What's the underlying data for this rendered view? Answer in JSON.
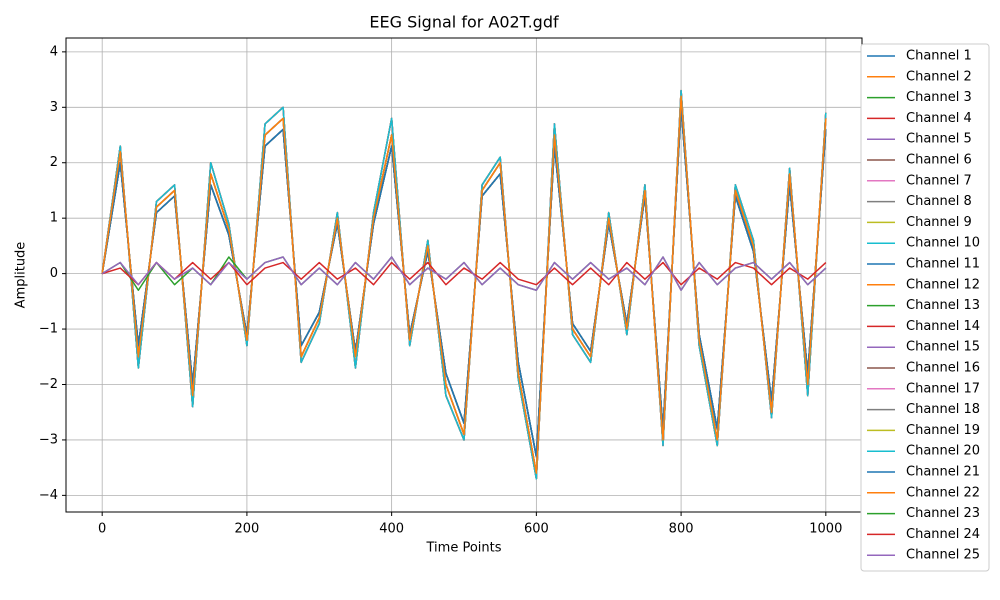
{
  "chart_data": {
    "type": "line",
    "title": "EEG Signal for A02T.gdf",
    "xlabel": "Time Points",
    "ylabel": "Amplitude",
    "x": [
      0,
      25,
      50,
      75,
      100,
      125,
      150,
      175,
      200,
      225,
      250,
      275,
      300,
      325,
      350,
      375,
      400,
      425,
      450,
      475,
      500,
      525,
      550,
      575,
      600,
      625,
      650,
      675,
      700,
      725,
      750,
      775,
      800,
      825,
      850,
      875,
      900,
      925,
      950,
      975,
      1000
    ],
    "xlim": [
      -50,
      1050
    ],
    "xticks": [
      0,
      200,
      400,
      600,
      800,
      1000
    ],
    "ylim": [
      -4.3,
      4.25
    ],
    "yticks": [
      {
        "value": -4,
        "label": "−4"
      },
      {
        "value": -3,
        "label": "−3"
      },
      {
        "value": -2,
        "label": "−2"
      },
      {
        "value": -1,
        "label": "−1"
      },
      0,
      1,
      2,
      3,
      4
    ],
    "grid": true,
    "legend": "outside-right",
    "series": [
      {
        "name": "Channel 1",
        "color": "#1f77b4",
        "values": [
          0,
          2.0,
          -1.3,
          1.1,
          1.4,
          -2.0,
          1.6,
          0.7,
          -1.1,
          2.3,
          2.6,
          -1.3,
          -0.7,
          0.9,
          -1.4,
          0.9,
          2.3,
          -1.1,
          0.4,
          -1.8,
          -2.7,
          1.4,
          1.8,
          -1.6,
          -3.3,
          2.3,
          -0.9,
          -1.4,
          0.9,
          -0.9,
          1.4,
          -2.8,
          3.0,
          -1.1,
          -2.8,
          1.4,
          0.4,
          -2.3,
          1.6,
          -1.8,
          2.6
        ]
      },
      {
        "name": "Channel 2",
        "color": "#ff7f0e",
        "values": [
          0,
          2.2,
          -1.5,
          1.2,
          1.5,
          -2.2,
          1.8,
          0.8,
          -1.2,
          2.5,
          2.8,
          -1.5,
          -0.8,
          1.0,
          -1.5,
          1.0,
          2.5,
          -1.2,
          0.5,
          -2.0,
          -2.9,
          1.5,
          2.0,
          -1.8,
          -3.6,
          2.5,
          -1.0,
          -1.5,
          1.0,
          -1.0,
          1.5,
          -3.0,
          3.2,
          -1.2,
          -3.0,
          1.5,
          0.5,
          -2.5,
          1.8,
          -2.0,
          2.8
        ]
      },
      {
        "name": "Channel 3",
        "color": "#2ca02c",
        "values": [
          0,
          2.3,
          -1.7,
          1.3,
          1.6,
          -2.4,
          2.0,
          0.9,
          -1.3,
          2.7,
          3.0,
          -1.6,
          -0.9,
          1.1,
          -1.7,
          1.1,
          2.8,
          -1.3,
          0.6,
          -2.2,
          -3.0,
          1.6,
          2.1,
          -1.9,
          -3.7,
          2.7,
          -1.1,
          -1.6,
          1.1,
          -1.1,
          1.6,
          -3.1,
          3.3,
          -1.3,
          -3.1,
          1.6,
          0.6,
          -2.6,
          1.9,
          -2.2,
          2.9
        ]
      },
      {
        "name": "Channel 4",
        "color": "#d62728",
        "values": [
          0,
          2.0,
          -1.3,
          1.1,
          1.4,
          -2.0,
          1.6,
          0.7,
          -1.1,
          2.3,
          2.6,
          -1.3,
          -0.7,
          0.9,
          -1.4,
          0.9,
          2.3,
          -1.1,
          0.4,
          -1.8,
          -2.7,
          1.4,
          1.8,
          -1.6,
          -3.3,
          2.3,
          -0.9,
          -1.4,
          0.9,
          -0.9,
          1.4,
          -2.8,
          3.0,
          -1.1,
          -2.8,
          1.4,
          0.4,
          -2.3,
          1.6,
          -1.8,
          2.6
        ]
      },
      {
        "name": "Channel 5",
        "color": "#9467bd",
        "values": [
          0,
          2.2,
          -1.5,
          1.2,
          1.5,
          -2.2,
          1.8,
          0.8,
          -1.2,
          2.5,
          2.8,
          -1.5,
          -0.8,
          1.0,
          -1.5,
          1.0,
          2.5,
          -1.2,
          0.5,
          -2.0,
          -2.9,
          1.5,
          2.0,
          -1.8,
          -3.6,
          2.5,
          -1.0,
          -1.5,
          1.0,
          -1.0,
          1.5,
          -3.0,
          3.2,
          -1.2,
          -3.0,
          1.5,
          0.5,
          -2.5,
          1.8,
          -2.0,
          2.8
        ]
      },
      {
        "name": "Channel 6",
        "color": "#8c564b",
        "values": [
          0,
          2.3,
          -1.7,
          1.3,
          1.6,
          -2.4,
          2.0,
          0.9,
          -1.3,
          2.7,
          3.0,
          -1.6,
          -0.9,
          1.1,
          -1.7,
          1.1,
          2.8,
          -1.3,
          0.6,
          -2.2,
          -3.0,
          1.6,
          2.1,
          -1.9,
          -3.7,
          2.7,
          -1.1,
          -1.6,
          1.1,
          -1.1,
          1.6,
          -3.1,
          3.3,
          -1.3,
          -3.1,
          1.6,
          0.6,
          -2.6,
          1.9,
          -2.2,
          2.9
        ]
      },
      {
        "name": "Channel 7",
        "color": "#e377c2",
        "values": [
          0,
          2.0,
          -1.3,
          1.1,
          1.4,
          -2.0,
          1.6,
          0.7,
          -1.1,
          2.3,
          2.6,
          -1.3,
          -0.7,
          0.9,
          -1.4,
          0.9,
          2.3,
          -1.1,
          0.4,
          -1.8,
          -2.7,
          1.4,
          1.8,
          -1.6,
          -3.3,
          2.3,
          -0.9,
          -1.4,
          0.9,
          -0.9,
          1.4,
          -2.8,
          3.0,
          -1.1,
          -2.8,
          1.4,
          0.4,
          -2.3,
          1.6,
          -1.8,
          2.6
        ]
      },
      {
        "name": "Channel 8",
        "color": "#7f7f7f",
        "values": [
          0,
          2.2,
          -1.5,
          1.2,
          1.5,
          -2.2,
          1.8,
          0.8,
          -1.2,
          2.5,
          2.8,
          -1.5,
          -0.8,
          1.0,
          -1.5,
          1.0,
          2.5,
          -1.2,
          0.5,
          -2.0,
          -2.9,
          1.5,
          2.0,
          -1.8,
          -3.6,
          2.5,
          -1.0,
          -1.5,
          1.0,
          -1.0,
          1.5,
          -3.0,
          3.2,
          -1.2,
          -3.0,
          1.5,
          0.5,
          -2.5,
          1.8,
          -2.0,
          2.8
        ]
      },
      {
        "name": "Channel 9",
        "color": "#bcbd22",
        "values": [
          0,
          2.3,
          -1.7,
          1.3,
          1.6,
          -2.4,
          2.0,
          0.9,
          -1.3,
          2.7,
          3.0,
          -1.6,
          -0.9,
          1.1,
          -1.7,
          1.1,
          2.8,
          -1.3,
          0.6,
          -2.2,
          -3.0,
          1.6,
          2.1,
          -1.9,
          -3.7,
          2.7,
          -1.1,
          -1.6,
          1.1,
          -1.1,
          1.6,
          -3.1,
          3.3,
          -1.3,
          -3.1,
          1.6,
          0.6,
          -2.6,
          1.9,
          -2.2,
          2.9
        ]
      },
      {
        "name": "Channel 10",
        "color": "#17becf",
        "values": [
          0,
          2.0,
          -1.3,
          1.1,
          1.4,
          -2.0,
          1.6,
          0.7,
          -1.1,
          2.3,
          2.6,
          -1.3,
          -0.7,
          0.9,
          -1.4,
          0.9,
          2.3,
          -1.1,
          0.4,
          -1.8,
          -2.7,
          1.4,
          1.8,
          -1.6,
          -3.3,
          2.3,
          -0.9,
          -1.4,
          0.9,
          -0.9,
          1.4,
          -2.8,
          3.0,
          -1.1,
          -2.8,
          1.4,
          0.4,
          -2.3,
          1.6,
          -1.8,
          2.6
        ]
      },
      {
        "name": "Channel 11",
        "color": "#1f77b4",
        "values": [
          0,
          2.2,
          -1.5,
          1.2,
          1.5,
          -2.2,
          1.8,
          0.8,
          -1.2,
          2.5,
          2.8,
          -1.5,
          -0.8,
          1.0,
          -1.5,
          1.0,
          2.5,
          -1.2,
          0.5,
          -2.0,
          -2.9,
          1.5,
          2.0,
          -1.8,
          -3.6,
          2.5,
          -1.0,
          -1.5,
          1.0,
          -1.0,
          1.5,
          -3.0,
          3.2,
          -1.2,
          -3.0,
          1.5,
          0.5,
          -2.5,
          1.8,
          -2.0,
          2.8
        ]
      },
      {
        "name": "Channel 12",
        "color": "#ff7f0e",
        "values": [
          0,
          2.3,
          -1.7,
          1.3,
          1.6,
          -2.4,
          2.0,
          0.9,
          -1.3,
          2.7,
          3.0,
          -1.6,
          -0.9,
          1.1,
          -1.7,
          1.1,
          2.8,
          -1.3,
          0.6,
          -2.2,
          -3.0,
          1.6,
          2.1,
          -1.9,
          -3.7,
          2.7,
          -1.1,
          -1.6,
          1.1,
          -1.1,
          1.6,
          -3.1,
          3.3,
          -1.3,
          -3.1,
          1.6,
          0.6,
          -2.6,
          1.9,
          -2.2,
          2.9
        ]
      },
      {
        "name": "Channel 13",
        "color": "#2ca02c",
        "values": [
          0,
          2.0,
          -1.3,
          1.1,
          1.4,
          -2.0,
          1.6,
          0.7,
          -1.1,
          2.3,
          2.6,
          -1.3,
          -0.7,
          0.9,
          -1.4,
          0.9,
          2.3,
          -1.1,
          0.4,
          -1.8,
          -2.7,
          1.4,
          1.8,
          -1.6,
          -3.3,
          2.3,
          -0.9,
          -1.4,
          0.9,
          -0.9,
          1.4,
          -2.8,
          3.0,
          -1.1,
          -2.8,
          1.4,
          0.4,
          -2.3,
          1.6,
          -1.8,
          2.6
        ]
      },
      {
        "name": "Channel 14",
        "color": "#d62728",
        "values": [
          0,
          2.3,
          -1.7,
          1.3,
          1.6,
          -2.4,
          2.0,
          0.9,
          -1.3,
          2.7,
          3.0,
          -1.6,
          -0.9,
          1.1,
          -1.7,
          1.1,
          2.8,
          -1.3,
          0.6,
          -2.2,
          -3.0,
          1.6,
          2.1,
          -1.9,
          -3.7,
          2.7,
          -1.1,
          -1.6,
          1.1,
          -1.1,
          1.6,
          -3.1,
          3.3,
          -1.3,
          -3.1,
          1.6,
          0.6,
          -2.6,
          1.9,
          -2.2,
          2.9
        ]
      },
      {
        "name": "Channel 15",
        "color": "#9467bd",
        "values": [
          0,
          2.2,
          -1.5,
          1.2,
          1.5,
          -2.2,
          1.8,
          0.8,
          -1.2,
          2.5,
          2.8,
          -1.5,
          -0.8,
          1.0,
          -1.5,
          1.0,
          2.5,
          -1.2,
          0.5,
          -2.0,
          -2.9,
          1.5,
          2.0,
          -1.8,
          -3.6,
          2.5,
          -1.0,
          -1.5,
          1.0,
          -1.0,
          1.5,
          -3.0,
          3.2,
          -1.2,
          -3.0,
          1.5,
          0.5,
          -2.5,
          1.8,
          -2.0,
          2.8
        ]
      },
      {
        "name": "Channel 16",
        "color": "#8c564b",
        "values": [
          0,
          2.0,
          -1.3,
          1.1,
          1.4,
          -2.0,
          1.6,
          0.7,
          -1.1,
          2.3,
          2.6,
          -1.3,
          -0.7,
          0.9,
          -1.4,
          0.9,
          2.3,
          -1.1,
          0.4,
          -1.8,
          -2.7,
          1.4,
          1.8,
          -1.6,
          -3.3,
          2.3,
          -0.9,
          -1.4,
          0.9,
          -0.9,
          1.4,
          -2.8,
          3.0,
          -1.1,
          -2.8,
          1.4,
          0.4,
          -2.3,
          1.6,
          -1.8,
          2.6
        ]
      },
      {
        "name": "Channel 17",
        "color": "#e377c2",
        "values": [
          0,
          2.3,
          -1.7,
          1.3,
          1.6,
          -2.4,
          2.0,
          0.9,
          -1.3,
          2.7,
          3.0,
          -1.6,
          -0.9,
          1.1,
          -1.7,
          1.1,
          2.8,
          -1.3,
          0.6,
          -2.2,
          -3.0,
          1.6,
          2.1,
          -1.9,
          -3.7,
          2.7,
          -1.1,
          -1.6,
          1.1,
          -1.1,
          1.6,
          -3.1,
          3.3,
          -1.3,
          -3.1,
          1.6,
          0.6,
          -2.6,
          1.9,
          -2.2,
          2.9
        ]
      },
      {
        "name": "Channel 18",
        "color": "#7f7f7f",
        "values": [
          0,
          2.0,
          -1.3,
          1.1,
          1.4,
          -2.0,
          1.6,
          0.7,
          -1.1,
          2.3,
          2.6,
          -1.3,
          -0.7,
          0.9,
          -1.4,
          0.9,
          2.3,
          -1.1,
          0.4,
          -1.8,
          -2.7,
          1.4,
          1.8,
          -1.6,
          -3.3,
          2.3,
          -0.9,
          -1.4,
          0.9,
          -0.9,
          1.4,
          -2.8,
          3.0,
          -1.1,
          -2.8,
          1.4,
          0.4,
          -2.3,
          1.6,
          -1.8,
          2.6
        ]
      },
      {
        "name": "Channel 19",
        "color": "#bcbd22",
        "values": [
          0,
          2.2,
          -1.5,
          1.2,
          1.5,
          -2.2,
          1.8,
          0.8,
          -1.2,
          2.5,
          2.8,
          -1.5,
          -0.8,
          1.0,
          -1.5,
          1.0,
          2.5,
          -1.2,
          0.5,
          -2.0,
          -2.9,
          1.5,
          2.0,
          -1.8,
          -3.6,
          2.5,
          -1.0,
          -1.5,
          1.0,
          -1.0,
          1.5,
          -3.0,
          3.2,
          -1.2,
          -3.0,
          1.5,
          0.5,
          -2.5,
          1.8,
          -2.0,
          2.8
        ]
      },
      {
        "name": "Channel 20",
        "color": "#17becf",
        "values": [
          0,
          2.3,
          -1.7,
          1.3,
          1.6,
          -2.4,
          2.0,
          0.9,
          -1.3,
          2.7,
          3.0,
          -1.6,
          -0.9,
          1.1,
          -1.7,
          1.1,
          2.8,
          -1.3,
          0.6,
          -2.2,
          -3.0,
          1.6,
          2.1,
          -1.9,
          -3.7,
          2.7,
          -1.1,
          -1.6,
          1.1,
          -1.1,
          1.6,
          -3.1,
          3.3,
          -1.3,
          -3.1,
          1.6,
          0.6,
          -2.6,
          1.9,
          -2.2,
          2.9
        ]
      },
      {
        "name": "Channel 21",
        "color": "#1f77b4",
        "values": [
          0,
          2.0,
          -1.3,
          1.1,
          1.4,
          -2.0,
          1.6,
          0.7,
          -1.1,
          2.3,
          2.6,
          -1.3,
          -0.7,
          0.9,
          -1.4,
          0.9,
          2.3,
          -1.1,
          0.4,
          -1.8,
          -2.7,
          1.4,
          1.8,
          -1.6,
          -3.3,
          2.3,
          -0.9,
          -1.4,
          0.9,
          -0.9,
          1.4,
          -2.8,
          3.0,
          -1.1,
          -2.8,
          1.4,
          0.4,
          -2.3,
          1.6,
          -1.8,
          2.6
        ]
      },
      {
        "name": "Channel 22",
        "color": "#ff7f0e",
        "values": [
          0,
          2.2,
          -1.5,
          1.2,
          1.5,
          -2.2,
          1.8,
          0.8,
          -1.2,
          2.5,
          2.8,
          -1.5,
          -0.8,
          1.0,
          -1.5,
          1.0,
          2.5,
          -1.2,
          0.5,
          -2.0,
          -2.9,
          1.5,
          2.0,
          -1.8,
          -3.6,
          2.5,
          -1.0,
          -1.5,
          1.0,
          -1.0,
          1.5,
          -3.0,
          3.2,
          -1.2,
          -3.0,
          1.5,
          0.5,
          -2.5,
          1.8,
          -2.0,
          2.8
        ]
      },
      {
        "name": "Channel 23",
        "color": "#2ca02c",
        "values": [
          0,
          0.2,
          -0.3,
          0.2,
          -0.2,
          0.1,
          -0.2,
          0.3,
          -0.1,
          0.2,
          0.3,
          -0.2,
          0.1,
          -0.2,
          0.2,
          -0.1,
          0.3,
          -0.2,
          0.1,
          -0.1,
          0.2,
          -0.2,
          0.1,
          -0.2,
          -0.3,
          0.2,
          -0.1,
          0.2,
          -0.1,
          0.1,
          -0.2,
          0.3,
          -0.3,
          0.2,
          -0.2,
          0.1,
          0.2,
          -0.1,
          0.2,
          -0.2,
          0.1
        ]
      },
      {
        "name": "Channel 24",
        "color": "#d62728",
        "values": [
          0,
          0.1,
          -0.2,
          0.2,
          -0.1,
          0.2,
          -0.1,
          0.2,
          -0.2,
          0.1,
          0.2,
          -0.1,
          0.2,
          -0.1,
          0.1,
          -0.2,
          0.2,
          -0.1,
          0.2,
          -0.2,
          0.1,
          -0.1,
          0.2,
          -0.1,
          -0.2,
          0.1,
          -0.2,
          0.1,
          -0.2,
          0.2,
          -0.1,
          0.2,
          -0.2,
          0.1,
          -0.1,
          0.2,
          0.1,
          -0.2,
          0.1,
          -0.1,
          0.2
        ]
      },
      {
        "name": "Channel 25",
        "color": "#9467bd",
        "values": [
          0,
          0.2,
          -0.2,
          0.2,
          -0.1,
          0.1,
          -0.2,
          0.2,
          -0.1,
          0.2,
          0.3,
          -0.2,
          0.1,
          -0.2,
          0.2,
          -0.1,
          0.3,
          -0.2,
          0.1,
          -0.1,
          0.2,
          -0.2,
          0.1,
          -0.2,
          -0.3,
          0.2,
          -0.1,
          0.2,
          -0.1,
          0.1,
          -0.2,
          0.3,
          -0.3,
          0.2,
          -0.2,
          0.1,
          0.2,
          -0.1,
          0.2,
          -0.2,
          0.1
        ]
      }
    ]
  }
}
